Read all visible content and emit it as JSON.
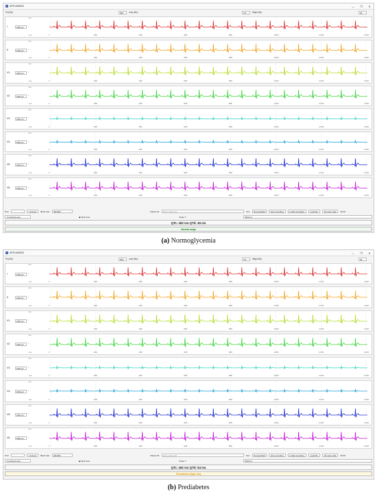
{
  "colors": {
    "I": "#d9302f",
    "II": "#f0a320",
    "V1": "#b7dc2c",
    "V2": "#3dd63d",
    "V3": "#39d0c0",
    "V4": "#1a9fd6",
    "V5": "#1f2fd0",
    "V6": "#c01ad0",
    "normal": "#1a8a1a",
    "prediabetes": "#e0a000"
  },
  "window": {
    "title": "AFE1483002",
    "minimize": "—",
    "maximize": "❐",
    "close": "✕"
  },
  "params": {
    "fs_label": "Fs (Hz):",
    "fs_value": "500",
    "low_label": "Low (Hz):",
    "low_value": "0.5",
    "high_label": "High (Hz):",
    "high_value": "40"
  },
  "lead_scale": "1500 µV",
  "yticks": [
    "1500",
    "0",
    "-1500"
  ],
  "xticks": [
    "0",
    "2000",
    "4000",
    "6000",
    "8000",
    "10,000",
    "12,000",
    "14,000"
  ],
  "controls": {
    "port_label": "Port:",
    "port_value": "",
    "connect": "Connect",
    "baud_label": "Baud rate:",
    "baud_value": "460,800",
    "patient_label": "Patient ID:",
    "patient_placeholder": "Enter patient ID",
    "sex_label": "Sex:",
    "sex_value": "Not specified",
    "auto_recording": "Auto recording",
    "start_recording": "▸ Start recording",
    "load_file": "Load file",
    "qt_auto": "QT auto-mark",
    "qt_value": "00:00"
  },
  "view": {
    "combined": "Combined view",
    "split": "Split view",
    "scale_label": "Scale Y:",
    "scale_value": "1500 µV"
  },
  "panel_a": {
    "leads": [
      "I",
      "II",
      "V1",
      "V2",
      "V3",
      "V4",
      "V5",
      "V6"
    ],
    "qtc": "QTc: 402 ms  QTd: 45 ms",
    "status": "Normal range",
    "caption_tag": "(a)",
    "caption_text": "Normoglycemia"
  },
  "panel_b": {
    "leads": [
      "I",
      "II",
      "V1",
      "V2",
      "V3",
      "V4",
      "V5",
      "V6"
    ],
    "qtc": "QTc: 402 ms  QTd: 54 ms",
    "status": "Prediabetes (high risk)",
    "caption_tag": "(b)",
    "caption_text": "Prediabetes"
  }
}
